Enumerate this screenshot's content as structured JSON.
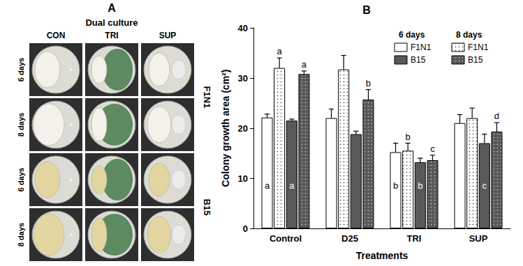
{
  "panel_a": {
    "letter": "A",
    "title": "Dual culture",
    "columns": [
      "CON",
      "TRI",
      "SUP"
    ],
    "rows": [
      "6 days",
      "8 days"
    ],
    "groups": [
      "F1N1",
      "B15"
    ]
  },
  "chart_data": {
    "type": "bar",
    "panel": "B",
    "x_label": "Treatments",
    "y_label": "Colony growth area (cm²)",
    "categories": [
      "Control",
      "D25",
      "TRI",
      "SUP"
    ],
    "ylim": [
      0,
      40
    ],
    "yticks": [
      0,
      10,
      20,
      30,
      40
    ],
    "grid": false,
    "legend": "upper right",
    "legend_groups": [
      "6 days",
      "8 days"
    ],
    "series": [
      {
        "name": "F1N1",
        "group": "6 days",
        "color": "#ffffff",
        "values": [
          22.1,
          22.0,
          15.2,
          21.0
        ],
        "errors": [
          0.7,
          1.8,
          1.8,
          1.7
        ],
        "letters": [
          "a",
          null,
          "b",
          null
        ]
      },
      {
        "name": "F1N1",
        "group": "8 days",
        "color": "#ffffff",
        "marker": "dots",
        "values": [
          32.0,
          31.7,
          15.5,
          22.0
        ],
        "errors": [
          2.0,
          2.8,
          1.5,
          2.0
        ],
        "letters": [
          "a",
          null,
          "b",
          null
        ]
      },
      {
        "name": "B15",
        "group": "6 days",
        "color": "#595959",
        "values": [
          21.5,
          18.8,
          13.2,
          17.0
        ],
        "errors": [
          0.3,
          0.6,
          0.8,
          1.8
        ],
        "letters": [
          "a",
          null,
          "b",
          "c"
        ]
      },
      {
        "name": "B15",
        "group": "8 days",
        "color": "#595959",
        "marker": "dots",
        "values": [
          30.8,
          25.7,
          13.6,
          19.3
        ],
        "errors": [
          0.6,
          2.0,
          1.0,
          1.8
        ],
        "letters": [
          "a",
          "b",
          "c",
          "d"
        ]
      }
    ]
  }
}
